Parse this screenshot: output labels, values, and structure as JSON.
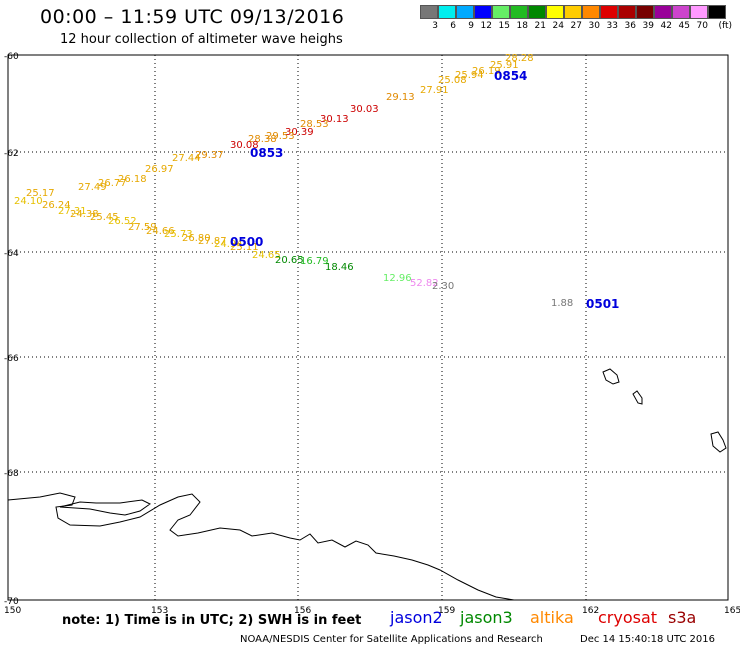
{
  "header": {
    "title": "00:00 – 11:59 UTC 09/13/2016",
    "subtitle": "12 hour collection of altimeter wave heighs"
  },
  "colorbar": {
    "colors": [
      "#777777",
      "#00eeee",
      "#00aaff",
      "#0000ff",
      "#66ee66",
      "#22bb22",
      "#008800",
      "#ffff00",
      "#ffcc00",
      "#ff8800",
      "#dd0000",
      "#aa0000",
      "#770000",
      "#990099",
      "#cc44cc",
      "#ff99ff",
      "#000000"
    ],
    "ticks": [
      "3",
      "6",
      "9",
      "12",
      "15",
      "18",
      "21",
      "24",
      "27",
      "30",
      "33",
      "36",
      "39",
      "42",
      "45",
      "70"
    ],
    "unit": "(ft)"
  },
  "axes": {
    "lat_ticks": [
      "-60",
      "-62",
      "-64",
      "-66",
      "-68",
      "-70"
    ],
    "lon_ticks": [
      "150",
      "153",
      "156",
      "159",
      "162",
      "165"
    ]
  },
  "tracks": {
    "times": [
      "0854",
      "0853",
      "0500",
      "0501"
    ],
    "swh_labels": [
      {
        "text": "28.28",
        "color": "#e6a800"
      },
      {
        "text": "25.91",
        "color": "#e6a800"
      },
      {
        "text": "26.19",
        "color": "#e6a800"
      },
      {
        "text": "25.94",
        "color": "#e6a800"
      },
      {
        "text": "25.08",
        "color": "#e6a800"
      },
      {
        "text": "27.91",
        "color": "#e6a800"
      },
      {
        "text": "29.13",
        "color": "#e08a00"
      },
      {
        "text": "30.03",
        "color": "#cc0000"
      },
      {
        "text": "30.13",
        "color": "#cc0000"
      },
      {
        "text": "28.53",
        "color": "#e08a00"
      },
      {
        "text": "30.39",
        "color": "#cc0000"
      },
      {
        "text": "29.53",
        "color": "#e08a00"
      },
      {
        "text": "28.38",
        "color": "#e08a00"
      },
      {
        "text": "30.08",
        "color": "#cc0000"
      },
      {
        "text": "29.37",
        "color": "#e08a00"
      },
      {
        "text": "27.44",
        "color": "#e6a800"
      },
      {
        "text": "26.97",
        "color": "#e6a800"
      },
      {
        "text": "26.18",
        "color": "#e6a800"
      },
      {
        "text": "26.77",
        "color": "#e6a800"
      },
      {
        "text": "27.49",
        "color": "#e6a800"
      },
      {
        "text": "24.65",
        "color": "#e6c000"
      },
      {
        "text": "20.65",
        "color": "#008800"
      },
      {
        "text": "16.79",
        "color": "#22bb22"
      },
      {
        "text": "18.46",
        "color": "#008800"
      },
      {
        "text": "12.96",
        "color": "#66ee66"
      },
      {
        "text": "52.82",
        "color": "#ee88ee"
      },
      {
        "text": "2.30",
        "color": "#777777"
      },
      {
        "text": "1.88",
        "color": "#777777"
      }
    ]
  },
  "legend": {
    "note": "note: 1) Time is in UTC; 2) SWH is in feet",
    "satellites": [
      {
        "name": "jason2",
        "color": "#0000dd"
      },
      {
        "name": "jason3",
        "color": "#008800"
      },
      {
        "name": "altika",
        "color": "#ff8800"
      },
      {
        "name": "cryosat",
        "color": "#dd0000"
      },
      {
        "name": "s3a",
        "color": "#990000"
      }
    ]
  },
  "footer": {
    "credit": "NOAA/NESDIS Center for Satellite Applications and Research",
    "timestamp": "Dec 14 15:40:18 UTC 2016"
  }
}
